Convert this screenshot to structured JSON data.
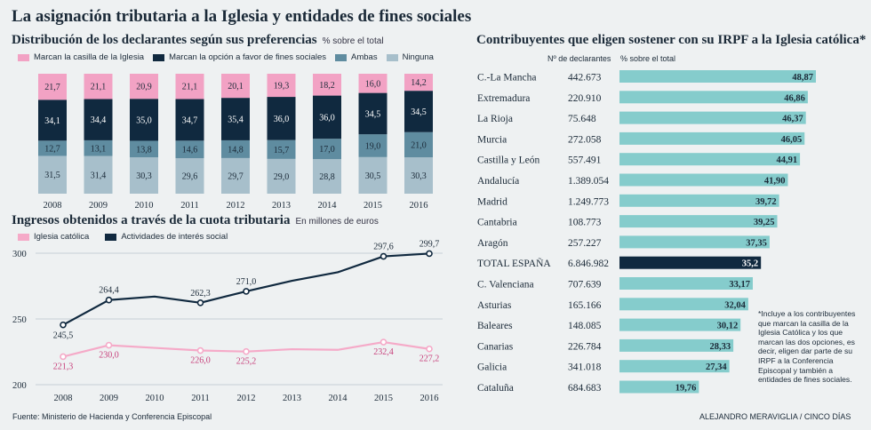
{
  "title": "La asignación tributaria a la Iglesia y entidades de fines sociales",
  "colors": {
    "pink": "#f2a2c4",
    "navy": "#10293f",
    "steel": "#5f8ca0",
    "lightsteel": "#a7bfcb",
    "teal": "#85cccc",
    "pinkline": "#f5aac8",
    "bg": "#eef1f2"
  },
  "chart_data": [
    {
      "type": "bar",
      "stacked": true,
      "title": "Distribución de los declarantes según sus preferencias",
      "subtitle": "% sobre el total",
      "categories": [
        "2008",
        "2009",
        "2010",
        "2011",
        "2012",
        "2013",
        "2014",
        "2015",
        "2016"
      ],
      "series": [
        {
          "name": "Marcan la casilla de la Iglesia",
          "color": "#f2a2c4",
          "values": [
            21.7,
            21.1,
            20.9,
            21.1,
            20.1,
            19.3,
            18.2,
            16.0,
            14.2
          ],
          "labels": [
            "21,7",
            "21,1",
            "20,9",
            "21,1",
            "20,1",
            "19,3",
            "18,2",
            "16,0",
            "14,2"
          ]
        },
        {
          "name": "Marcan la opción a favor de fines sociales",
          "color": "#10293f",
          "values": [
            34.1,
            34.4,
            35.0,
            34.7,
            35.4,
            36.0,
            36.0,
            34.5,
            34.5
          ],
          "labels": [
            "34,1",
            "34,4",
            "35,0",
            "34,7",
            "35,4",
            "36,0",
            "36,0",
            "34,5",
            "34,5"
          ]
        },
        {
          "name": "Ambas",
          "color": "#5f8ca0",
          "values": [
            12.7,
            13.1,
            13.8,
            14.6,
            14.8,
            15.7,
            17.0,
            19.0,
            21.0
          ],
          "labels": [
            "12,7",
            "13,1",
            "13,8",
            "14,6",
            "14,8",
            "15,7",
            "17,0",
            "19,0",
            "21,0"
          ]
        },
        {
          "name": "Ninguna",
          "color": "#a7bfcb",
          "values": [
            31.5,
            31.4,
            30.3,
            29.6,
            29.7,
            29.0,
            28.8,
            30.5,
            30.3
          ],
          "labels": [
            "31,5",
            "31,4",
            "30,3",
            "29,6",
            "29,7",
            "29,0",
            "28,8",
            "30,5",
            "30,3"
          ]
        }
      ],
      "ylim": [
        0,
        100
      ]
    },
    {
      "type": "line",
      "title": "Ingresos obtenidos a través de la cuota tributaria",
      "subtitle": "En millones de euros",
      "x": [
        "2008",
        "2009",
        "2010",
        "2011",
        "2012",
        "2013",
        "2014",
        "2015",
        "2016"
      ],
      "series": [
        {
          "name": "Iglesia católica",
          "color": "#f5aac8",
          "values": [
            221.3,
            230.0,
            228.0,
            226.0,
            225.2,
            227.0,
            226.5,
            232.4,
            227.2
          ],
          "labels": [
            "221,3",
            "230,0",
            "",
            "226,0",
            "225,2",
            "",
            "",
            "232,4",
            "227,2"
          ]
        },
        {
          "name": "Actividades de interés social",
          "color": "#10293f",
          "values": [
            245.5,
            264.4,
            267.0,
            262.3,
            271.0,
            279.0,
            285.5,
            297.6,
            299.7
          ],
          "labels": [
            "245,5",
            "264,4",
            "",
            "262,3",
            "271,0",
            "",
            "",
            "297,6",
            "299,7"
          ]
        }
      ],
      "yticks": [
        "300",
        "250",
        "200"
      ],
      "ylim": [
        200,
        300
      ]
    },
    {
      "type": "bar",
      "orientation": "horizontal",
      "title": "Contribuyentes que eligen sostener con su IRPF a la Iglesia católica*",
      "col_declarantes": "Nº de declarantes",
      "col_pct": "% sobre el total",
      "rows": [
        {
          "region": "C.-La Mancha",
          "declarantes": "442.673",
          "value": 48.87,
          "label": "48,87"
        },
        {
          "region": "Extremadura",
          "declarantes": "220.910",
          "value": 46.86,
          "label": "46,86"
        },
        {
          "region": "La Rioja",
          "declarantes": "75.648",
          "value": 46.37,
          "label": "46,37"
        },
        {
          "region": "Murcia",
          "declarantes": "272.058",
          "value": 46.05,
          "label": "46,05"
        },
        {
          "region": "Castilla y León",
          "declarantes": "557.491",
          "value": 44.91,
          "label": "44,91"
        },
        {
          "region": "Andalucía",
          "declarantes": "1.389.054",
          "value": 41.9,
          "label": "41,90"
        },
        {
          "region": "Madrid",
          "declarantes": "1.249.773",
          "value": 39.72,
          "label": "39,72"
        },
        {
          "region": "Cantabria",
          "declarantes": "108.773",
          "value": 39.25,
          "label": "39,25"
        },
        {
          "region": "Aragón",
          "declarantes": "257.227",
          "value": 37.35,
          "label": "37,35"
        },
        {
          "region": "TOTAL ESPAÑA",
          "declarantes": "6.846.982",
          "value": 35.2,
          "label": "35,2",
          "highlight": true
        },
        {
          "region": "C. Valenciana",
          "declarantes": "707.639",
          "value": 33.17,
          "label": "33,17"
        },
        {
          "region": "Asturias",
          "declarantes": "165.166",
          "value": 32.04,
          "label": "32,04"
        },
        {
          "region": "Baleares",
          "declarantes": "148.085",
          "value": 30.12,
          "label": "30,12"
        },
        {
          "region": "Canarias",
          "declarantes": "226.784",
          "value": 28.33,
          "label": "28,33"
        },
        {
          "region": "Galicia",
          "declarantes": "341.018",
          "value": 27.34,
          "label": "27,34"
        },
        {
          "region": "Cataluña",
          "declarantes": "684.683",
          "value": 19.76,
          "label": "19,76"
        }
      ]
    }
  ],
  "note": "*Incluye a los contribuyentes que marcan la casilla de la Iglesia Católica y los que marcan las dos opciones, es decir, eligen dar parte de su IRPF a la Conferencia Episcopal y también a entidades de fines sociales.",
  "source": "Fuente: Ministerio de Hacienda y Conferencia Episcopal",
  "credit": "ALEJANDRO MERAVIGLIA / CINCO DÍAS"
}
